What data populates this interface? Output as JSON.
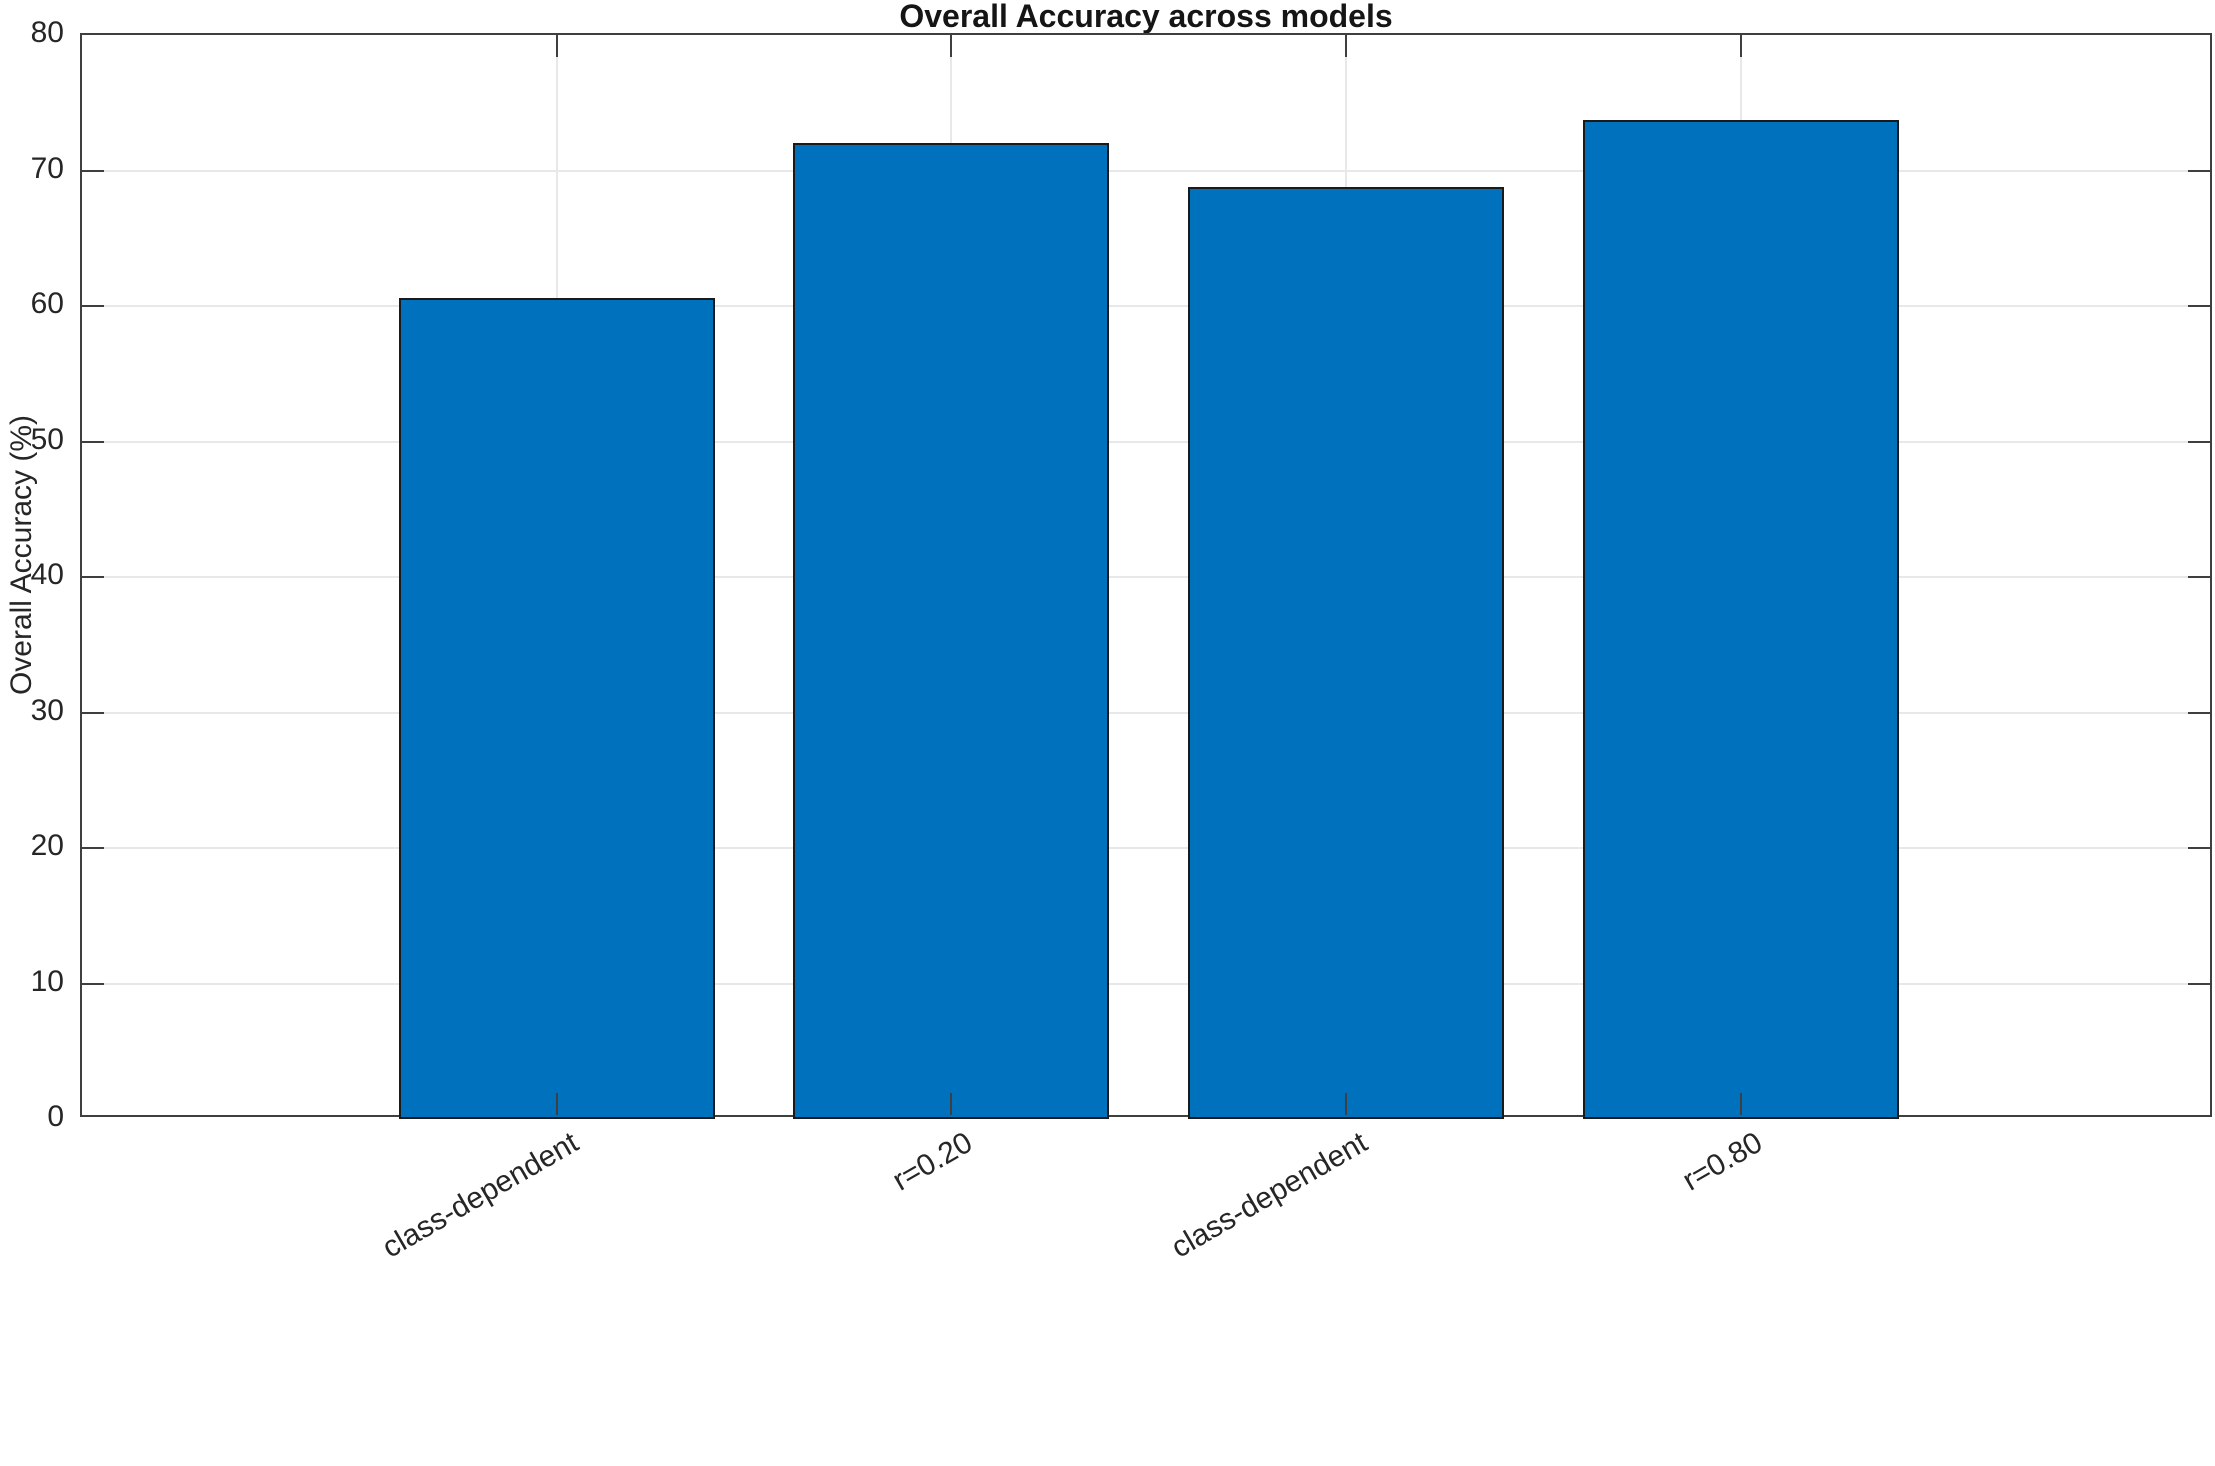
{
  "chart_data": {
    "type": "bar",
    "title": "Overall Accuracy across models",
    "categories": [
      "class-dependent",
      "r=0.20",
      "class-dependent",
      "r=0.80"
    ],
    "values": [
      60.6,
      72.0,
      68.8,
      73.7
    ],
    "xlabel": "",
    "ylabel": "Overall Accuracy (%)",
    "ylim": [
      0,
      80
    ],
    "yticks": [
      0,
      10,
      20,
      30,
      40,
      50,
      60,
      70,
      80
    ],
    "grid": true,
    "legend": "none",
    "x_tick_rotation_deg": 30,
    "bar_color": "#0072bd",
    "bar_edge_color": "#1a1a1a",
    "axis_color": "#3f3f3f",
    "grid_color": "#e8e8e8",
    "font_color": "#262626",
    "title_color": "#151515",
    "background_color": "#ffffff"
  }
}
